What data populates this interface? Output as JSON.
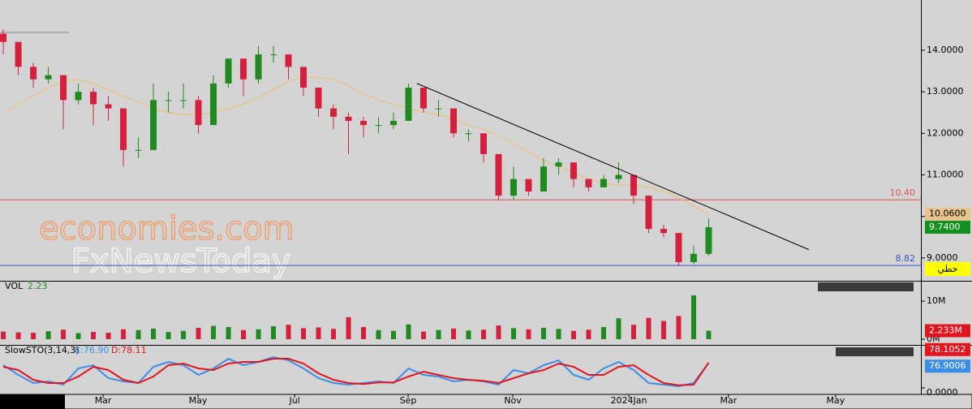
{
  "chart_data": {
    "type": "candlestick",
    "watermark": [
      "economies.com",
      "FxNewsToday"
    ],
    "xlim": [
      -0.22,
      61.14
    ],
    "xticks": [
      {
        "value": 6.65,
        "label": "Mar"
      },
      {
        "value": 12.97,
        "label": "May"
      },
      {
        "value": 19.41,
        "label": "Jul"
      },
      {
        "value": 26.97,
        "label": "Sep"
      },
      {
        "value": 33.95,
        "label": "Nov"
      },
      {
        "value": 41.68,
        "label": "2024Jan"
      },
      {
        "value": 48.32,
        "label": "Mar"
      },
      {
        "value": 55.46,
        "label": "May"
      }
    ],
    "ylim": [
      8.47,
      15.21
    ],
    "yticks": [
      {
        "value": 14,
        "label": "14.0000"
      },
      {
        "value": 13,
        "label": "13.0000"
      },
      {
        "value": 12,
        "label": "12.0000"
      },
      {
        "value": 11,
        "label": "11.0000"
      },
      {
        "value": 10,
        "label": "10.0000"
      },
      {
        "value": 9,
        "label": "9.0000"
      }
    ],
    "up_color": "#1f8a1f",
    "down_color": "#d4203c",
    "open": [
      14.4,
      14.2,
      13.6,
      13.3,
      13.4,
      12.8,
      13.0,
      12.7,
      12.6,
      11.6,
      11.6,
      12.8,
      12.8,
      12.8,
      12.2,
      13.2,
      13.8,
      13.3,
      13.9,
      13.9,
      13.6,
      13.1,
      12.6,
      12.4,
      12.3,
      12.2,
      12.2,
      12.3,
      13.1,
      12.6,
      12.6,
      12.0,
      12.0,
      11.5,
      10.5,
      10.9,
      10.6,
      11.2,
      11.3,
      10.9,
      10.7,
      10.9,
      11.0,
      10.5,
      9.7,
      9.6,
      8.9,
      9.1
    ],
    "high": [
      14.5,
      14.2,
      13.7,
      13.6,
      13.4,
      13.2,
      13.1,
      12.9,
      12.6,
      11.9,
      13.2,
      13.0,
      13.2,
      12.9,
      13.4,
      13.8,
      13.8,
      14.1,
      14.1,
      13.9,
      13.6,
      13.1,
      12.7,
      12.5,
      12.4,
      12.4,
      12.5,
      13.2,
      13.1,
      12.8,
      12.6,
      12.1,
      12.0,
      11.5,
      11.2,
      10.9,
      11.4,
      11.4,
      11.3,
      10.9,
      11.0,
      11.3,
      11.0,
      10.5,
      9.8,
      9.6,
      9.3,
      9.95
    ],
    "low": [
      13.9,
      13.4,
      13.1,
      13.2,
      12.1,
      12.7,
      12.2,
      12.3,
      11.2,
      11.4,
      11.6,
      12.5,
      12.6,
      12.0,
      12.2,
      13.1,
      12.9,
      13.2,
      13.7,
      13.3,
      12.9,
      12.4,
      12.1,
      11.5,
      11.9,
      12.0,
      12.1,
      12.3,
      12.5,
      12.4,
      11.9,
      11.8,
      11.3,
      10.4,
      10.4,
      10.5,
      10.6,
      11.0,
      10.7,
      10.6,
      10.7,
      10.8,
      10.3,
      9.6,
      9.5,
      8.8,
      8.85,
      9.05
    ],
    "close": [
      14.2,
      13.6,
      13.3,
      13.4,
      12.8,
      13.0,
      12.7,
      12.6,
      11.6,
      11.6,
      12.8,
      12.8,
      12.8,
      12.2,
      13.2,
      13.8,
      13.3,
      13.9,
      13.9,
      13.6,
      13.1,
      12.6,
      12.4,
      12.3,
      12.2,
      12.2,
      12.3,
      13.1,
      12.6,
      12.6,
      12.0,
      12.0,
      11.5,
      10.5,
      10.9,
      10.6,
      11.2,
      11.3,
      10.9,
      10.7,
      10.9,
      11.0,
      10.5,
      9.7,
      9.6,
      8.9,
      9.1,
      9.74
    ],
    "ma": {
      "color": "#e8c48c",
      "values": [
        12.5,
        12.7,
        12.9,
        13.1,
        13.25,
        13.3,
        13.2,
        13.05,
        12.9,
        12.75,
        12.6,
        12.5,
        12.45,
        12.45,
        12.5,
        12.6,
        12.7,
        12.85,
        13.05,
        13.25,
        13.35,
        13.35,
        13.3,
        13.15,
        12.95,
        12.8,
        12.7,
        12.6,
        12.5,
        12.45,
        12.35,
        12.2,
        12.1,
        11.95,
        11.75,
        11.55,
        11.35,
        11.2,
        11.05,
        10.9,
        10.8,
        10.75,
        10.75,
        10.7,
        10.6,
        10.45,
        10.25,
        10.06
      ]
    },
    "hlines": [
      {
        "value": 10.4,
        "label": "10.40",
        "color": "#e0504a"
      },
      {
        "value": 8.82,
        "label": "8.82",
        "color": "#3a55c8"
      }
    ],
    "trendline": {
      "x": [
        27.57,
        53.68
      ],
      "y": [
        13.2,
        9.2
      ],
      "color": "#000000"
    },
    "price_tags": [
      {
        "value": 10.06,
        "label": "10.0600",
        "color": "#e8c48c"
      },
      {
        "value": 9.74,
        "label": "9.7400",
        "color": "#14901e"
      }
    ],
    "line_tag": "خطي",
    "volume": {
      "title": "VOL",
      "last_label": "2.23",
      "color": "#1f8a1f",
      "down_color": "#d4203c",
      "ylim": [
        0,
        14.5
      ],
      "yticks": [
        {
          "value": 10,
          "label": "10M"
        },
        {
          "value": 0,
          "label": "0M"
        }
      ],
      "values": [
        2.0,
        1.8,
        1.7,
        2.1,
        2.5,
        1.6,
        1.9,
        1.7,
        2.6,
        2.4,
        2.8,
        1.9,
        2.2,
        3.0,
        3.5,
        3.2,
        2.4,
        2.6,
        3.4,
        3.8,
        2.9,
        3.1,
        2.7,
        5.8,
        3.2,
        2.4,
        2.2,
        3.9,
        2.0,
        2.4,
        2.8,
        2.3,
        2.5,
        3.6,
        2.9,
        2.6,
        3.0,
        2.7,
        2.2,
        2.5,
        3.2,
        5.5,
        3.8,
        5.6,
        4.8,
        6.1,
        11.5,
        2.233
      ],
      "tag": {
        "value": 2.233,
        "label": "2.233M",
        "color": "#e3141e"
      }
    },
    "stochastic": {
      "title": "SlowSTO(3,14,3)",
      "ylim": [
        0,
        100
      ],
      "yticks": [
        {
          "value": 0,
          "label": "0.0000"
        }
      ],
      "series": [
        {
          "name": "K:76.90",
          "color": "#3a8ee8",
          "tag": "76.9006",
          "values": [
            70,
            40,
            15,
            20,
            10,
            60,
            70,
            30,
            20,
            15,
            65,
            80,
            70,
            40,
            60,
            90,
            70,
            80,
            95,
            85,
            60,
            30,
            15,
            10,
            15,
            20,
            15,
            60,
            40,
            35,
            20,
            25,
            20,
            10,
            55,
            45,
            70,
            85,
            40,
            25,
            60,
            80,
            55,
            15,
            10,
            5,
            15,
            76.9006
          ]
        },
        {
          "name": "D:78.11",
          "color": "#e3141e",
          "tag": "78.1052",
          "values": [
            65,
            55,
            25,
            15,
            15,
            35,
            65,
            55,
            25,
            15,
            35,
            70,
            75,
            60,
            55,
            75,
            80,
            80,
            90,
            90,
            75,
            45,
            25,
            15,
            12,
            17,
            17,
            35,
            50,
            40,
            30,
            25,
            22,
            15,
            30,
            45,
            55,
            75,
            65,
            40,
            40,
            65,
            70,
            40,
            15,
            8,
            10,
            78.1052
          ]
        }
      ]
    }
  }
}
